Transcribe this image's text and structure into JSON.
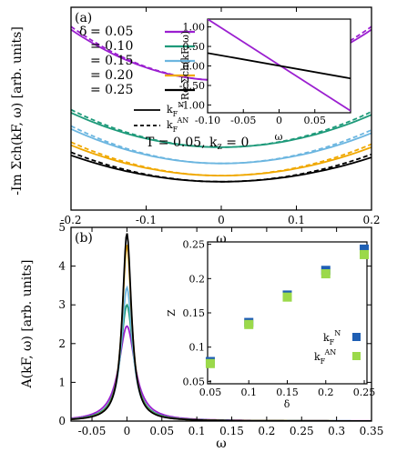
{
  "chart_data": [
    {
      "panel": "(a)",
      "type": "line",
      "xlabel": "ω",
      "ylabel": "-Im Σch(kF, ω) [arb. units]",
      "xlim": [
        -0.2,
        0.2
      ],
      "xticks": [
        "-0.2",
        "-0.1",
        "0",
        "0.1",
        "0.2"
      ],
      "annotation": "T = 0.05, kz = 0",
      "legend_title": "δ",
      "legend": [
        "= 0.05",
        "= 0.10",
        "= 0.15",
        "= 0.20",
        "= 0.25"
      ],
      "linestyle_legend": [
        {
          "label": "k_F^N",
          "style": "solid"
        },
        {
          "label": "k_F^AN",
          "style": "dashed"
        }
      ],
      "series": [
        {
          "name": "δ = 0.05",
          "color": "#9b1fd0",
          "min": 0.64,
          "ends": [
            0.89,
            0.89
          ]
        },
        {
          "name": "δ = 0.10",
          "color": "#1e9a7a",
          "min": 0.31,
          "ends": [
            0.48,
            0.47
          ]
        },
        {
          "name": "δ = 0.15",
          "color": "#6cb6e0",
          "min": 0.23,
          "ends": [
            0.4,
            0.38
          ]
        },
        {
          "name": "δ = 0.20",
          "color": "#f0a800",
          "min": 0.17,
          "ends": [
            0.32,
            0.31
          ]
        },
        {
          "name": "δ = 0.25",
          "color": "#000000",
          "min": 0.14,
          "ends": [
            0.27,
            0.26
          ]
        }
      ],
      "inset": {
        "xlabel": "ω",
        "ylabel": "Re Σch(kF, ω)",
        "xlim": [
          -0.1,
          0.1
        ],
        "ylim": [
          -1.2,
          1.2
        ],
        "xticks": [
          "-0.10",
          "-0.05",
          "0",
          "0.05"
        ],
        "yticks": [
          "1.00",
          "0.50",
          "0.00",
          "-0.50",
          "-1.00"
        ],
        "series": [
          {
            "name": "δ = 0.05",
            "color": "#9b1fd0",
            "x": [
              -0.1,
              0.1
            ],
            "y": [
              1.2,
              -1.15
            ]
          },
          {
            "name": "δ = 0.25",
            "color": "#000000",
            "x": [
              -0.1,
              0.1
            ],
            "y": [
              0.33,
              -0.32
            ]
          }
        ]
      }
    },
    {
      "panel": "(b)",
      "type": "line",
      "xlabel": "ω",
      "ylabel": "A(kF, ω) [arb. units]",
      "xlim": [
        -0.08,
        0.35
      ],
      "ylim": [
        0,
        5
      ],
      "xticks": [
        "-0.05",
        "0",
        "0.05",
        "0.1",
        "0.15",
        "0.2",
        "0.25",
        "0.3",
        "0.35"
      ],
      "yticks": [
        "0",
        "1",
        "2",
        "3",
        "4",
        "5"
      ],
      "series": [
        {
          "name": "δ = 0.05",
          "color": "#9b1fd0",
          "peak": 2.45,
          "width": 0.014
        },
        {
          "name": "δ = 0.10",
          "color": "#1e9a7a",
          "peak": 3.0,
          "width": 0.011
        },
        {
          "name": "δ = 0.15",
          "color": "#6cb6e0",
          "peak": 3.45,
          "width": 0.0095
        },
        {
          "name": "δ = 0.20",
          "color": "#f0a800",
          "peak": 4.55,
          "width": 0.0082
        },
        {
          "name": "δ = 0.25",
          "color": "#000000",
          "peak": 4.85,
          "width": 0.0078
        }
      ],
      "inset": {
        "type": "scatter",
        "xlabel": "δ",
        "ylabel": "Z",
        "xlim": [
          0.05,
          0.25
        ],
        "ylim": [
          0.05,
          0.25
        ],
        "xticks": [
          "0.05",
          "0.1",
          "0.15",
          "0.2",
          "0.25"
        ],
        "yticks": [
          "0.05",
          "0.1",
          "0.15",
          "0.2",
          "0.25"
        ],
        "legend": [
          "k_F^N",
          "k_F^AN"
        ],
        "series": [
          {
            "name": "k_F^N",
            "color": "#1f5fb4",
            "x": [
              0.05,
              0.1,
              0.15,
              0.2,
              0.25
            ],
            "y": [
              0.079,
              0.136,
              0.176,
              0.212,
              0.243
            ]
          },
          {
            "name": "k_F^AN",
            "color": "#9bd94a",
            "x": [
              0.05,
              0.1,
              0.15,
              0.2,
              0.25
            ],
            "y": [
              0.076,
              0.133,
              0.173,
              0.207,
              0.235
            ]
          }
        ]
      }
    }
  ]
}
